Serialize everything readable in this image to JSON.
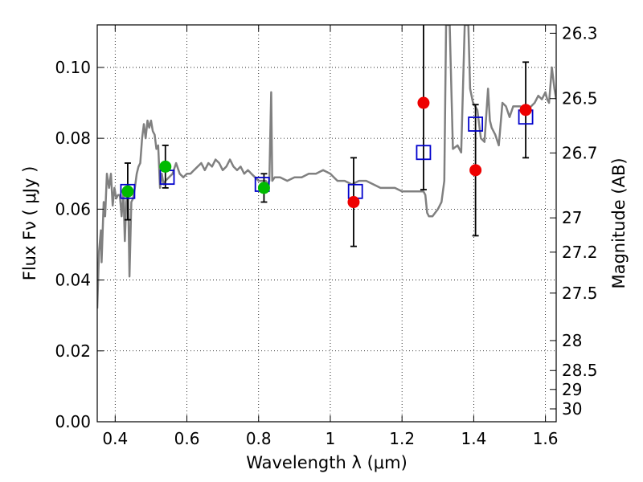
{
  "chart_data": {
    "type": "scatter",
    "xlabel": "Wavelength  λ (μm)",
    "ylabel": "Flux  Fν  ( μJy )",
    "right_ylabel": "Magnitude (AB)",
    "xlim": [
      0.35,
      1.63
    ],
    "ylim": [
      0.0,
      0.112
    ],
    "grid": true,
    "x_ticks": [
      {
        "value": 0.4,
        "label": "0.4"
      },
      {
        "value": 0.6,
        "label": "0.6"
      },
      {
        "value": 0.8,
        "label": "0.8"
      },
      {
        "value": 1.0,
        "label": "1"
      },
      {
        "value": 1.2,
        "label": "1.2"
      },
      {
        "value": 1.4,
        "label": "1.4"
      },
      {
        "value": 1.6,
        "label": "1.6"
      }
    ],
    "y_ticks": [
      {
        "value": 0.0,
        "label": "0.00"
      },
      {
        "value": 0.02,
        "label": "0.02"
      },
      {
        "value": 0.04,
        "label": "0.04"
      },
      {
        "value": 0.06,
        "label": "0.06"
      },
      {
        "value": 0.08,
        "label": "0.08"
      },
      {
        "value": 0.1,
        "label": "0.10"
      }
    ],
    "right_y_ticks": [
      {
        "value": 26.3,
        "label": "26.3"
      },
      {
        "value": 26.5,
        "label": "26.5"
      },
      {
        "value": 26.7,
        "label": "26.7"
      },
      {
        "value": 27.0,
        "label": "27"
      },
      {
        "value": 27.2,
        "label": "27.2"
      },
      {
        "value": 27.5,
        "label": "27.5"
      },
      {
        "value": 28.0,
        "label": "28"
      },
      {
        "value": 28.5,
        "label": "28.5"
      },
      {
        "value": 29.0,
        "label": "29"
      },
      {
        "value": 30.0,
        "label": "30"
      }
    ],
    "colors": {
      "template": "#808080",
      "model": "#0000cc",
      "green": "#00bb00",
      "red": "#ee0000",
      "errorbar": "#000000"
    },
    "template_spectrum": [
      [
        0.35,
        0.032
      ],
      [
        0.355,
        0.048
      ],
      [
        0.36,
        0.054
      ],
      [
        0.362,
        0.045
      ],
      [
        0.368,
        0.062
      ],
      [
        0.372,
        0.058
      ],
      [
        0.377,
        0.07
      ],
      [
        0.383,
        0.066
      ],
      [
        0.388,
        0.07
      ],
      [
        0.393,
        0.061
      ],
      [
        0.398,
        0.066
      ],
      [
        0.403,
        0.063
      ],
      [
        0.408,
        0.064
      ],
      [
        0.413,
        0.064
      ],
      [
        0.418,
        0.058
      ],
      [
        0.423,
        0.065
      ],
      [
        0.427,
        0.051
      ],
      [
        0.431,
        0.062
      ],
      [
        0.436,
        0.065
      ],
      [
        0.44,
        0.041
      ],
      [
        0.445,
        0.062
      ],
      [
        0.45,
        0.063
      ],
      [
        0.455,
        0.066
      ],
      [
        0.46,
        0.07
      ],
      [
        0.465,
        0.072
      ],
      [
        0.47,
        0.073
      ],
      [
        0.475,
        0.08
      ],
      [
        0.48,
        0.084
      ],
      [
        0.485,
        0.08
      ],
      [
        0.49,
        0.085
      ],
      [
        0.495,
        0.083
      ],
      [
        0.5,
        0.085
      ],
      [
        0.505,
        0.082
      ],
      [
        0.51,
        0.081
      ],
      [
        0.515,
        0.077
      ],
      [
        0.52,
        0.078
      ],
      [
        0.525,
        0.066
      ],
      [
        0.53,
        0.07
      ],
      [
        0.535,
        0.067
      ],
      [
        0.54,
        0.068
      ],
      [
        0.55,
        0.069
      ],
      [
        0.56,
        0.07
      ],
      [
        0.57,
        0.073
      ],
      [
        0.58,
        0.07
      ],
      [
        0.59,
        0.069
      ],
      [
        0.6,
        0.07
      ],
      [
        0.61,
        0.07
      ],
      [
        0.62,
        0.071
      ],
      [
        0.63,
        0.072
      ],
      [
        0.64,
        0.073
      ],
      [
        0.65,
        0.071
      ],
      [
        0.66,
        0.073
      ],
      [
        0.67,
        0.072
      ],
      [
        0.68,
        0.074
      ],
      [
        0.69,
        0.073
      ],
      [
        0.7,
        0.071
      ],
      [
        0.71,
        0.072
      ],
      [
        0.72,
        0.074
      ],
      [
        0.73,
        0.072
      ],
      [
        0.74,
        0.071
      ],
      [
        0.75,
        0.072
      ],
      [
        0.76,
        0.07
      ],
      [
        0.77,
        0.071
      ],
      [
        0.78,
        0.07
      ],
      [
        0.79,
        0.069
      ],
      [
        0.8,
        0.068
      ],
      [
        0.81,
        0.068
      ],
      [
        0.82,
        0.068
      ],
      [
        0.825,
        0.067
      ],
      [
        0.83,
        0.068
      ],
      [
        0.835,
        0.093
      ],
      [
        0.838,
        0.068
      ],
      [
        0.845,
        0.069
      ],
      [
        0.86,
        0.069
      ],
      [
        0.88,
        0.068
      ],
      [
        0.9,
        0.069
      ],
      [
        0.92,
        0.069
      ],
      [
        0.94,
        0.07
      ],
      [
        0.96,
        0.07
      ],
      [
        0.98,
        0.071
      ],
      [
        1.0,
        0.07
      ],
      [
        1.01,
        0.069
      ],
      [
        1.02,
        0.068
      ],
      [
        1.04,
        0.068
      ],
      [
        1.06,
        0.067
      ],
      [
        1.08,
        0.068
      ],
      [
        1.1,
        0.068
      ],
      [
        1.12,
        0.067
      ],
      [
        1.14,
        0.066
      ],
      [
        1.16,
        0.066
      ],
      [
        1.18,
        0.066
      ],
      [
        1.2,
        0.065
      ],
      [
        1.22,
        0.065
      ],
      [
        1.24,
        0.065
      ],
      [
        1.26,
        0.065
      ],
      [
        1.265,
        0.064
      ],
      [
        1.27,
        0.059
      ],
      [
        1.275,
        0.058
      ],
      [
        1.285,
        0.058
      ],
      [
        1.3,
        0.06
      ],
      [
        1.31,
        0.062
      ],
      [
        1.318,
        0.068
      ],
      [
        1.323,
        0.112
      ],
      [
        1.333,
        0.112
      ],
      [
        1.342,
        0.077
      ],
      [
        1.355,
        0.078
      ],
      [
        1.365,
        0.076
      ],
      [
        1.375,
        0.112
      ],
      [
        1.385,
        0.112
      ],
      [
        1.39,
        0.094
      ],
      [
        1.398,
        0.09
      ],
      [
        1.41,
        0.088
      ],
      [
        1.42,
        0.08
      ],
      [
        1.43,
        0.079
      ],
      [
        1.44,
        0.094
      ],
      [
        1.445,
        0.085
      ],
      [
        1.45,
        0.083
      ],
      [
        1.46,
        0.081
      ],
      [
        1.47,
        0.078
      ],
      [
        1.48,
        0.09
      ],
      [
        1.49,
        0.089
      ],
      [
        1.5,
        0.086
      ],
      [
        1.51,
        0.089
      ],
      [
        1.52,
        0.089
      ],
      [
        1.53,
        0.089
      ],
      [
        1.54,
        0.088
      ],
      [
        1.55,
        0.088
      ],
      [
        1.56,
        0.089
      ],
      [
        1.57,
        0.09
      ],
      [
        1.58,
        0.092
      ],
      [
        1.59,
        0.091
      ],
      [
        1.6,
        0.093
      ],
      [
        1.605,
        0.091
      ],
      [
        1.61,
        0.09
      ],
      [
        1.618,
        0.1
      ],
      [
        1.625,
        0.094
      ],
      [
        1.63,
        0.091
      ]
    ],
    "model_fluxes": [
      {
        "x": 0.435,
        "y": 0.065
      },
      {
        "x": 0.545,
        "y": 0.069
      },
      {
        "x": 0.81,
        "y": 0.067
      },
      {
        "x": 1.07,
        "y": 0.065
      },
      {
        "x": 1.26,
        "y": 0.076
      },
      {
        "x": 1.405,
        "y": 0.084
      },
      {
        "x": 1.545,
        "y": 0.086
      }
    ],
    "observed_fluxes": [
      {
        "x": 0.435,
        "y": 0.065,
        "yerr": 0.008,
        "color": "green"
      },
      {
        "x": 0.54,
        "y": 0.072,
        "yerr": 0.006,
        "color": "green"
      },
      {
        "x": 0.815,
        "y": 0.066,
        "yerr": 0.004,
        "color": "green"
      },
      {
        "x": 1.065,
        "y": 0.062,
        "yerr": 0.0125,
        "color": "red"
      },
      {
        "x": 1.26,
        "y": 0.09,
        "yerr": 0.0245,
        "color": "red"
      },
      {
        "x": 1.405,
        "y": 0.071,
        "yerr": 0.0185,
        "color": "red"
      },
      {
        "x": 1.545,
        "y": 0.088,
        "yerr": 0.0135,
        "color": "red"
      }
    ]
  }
}
